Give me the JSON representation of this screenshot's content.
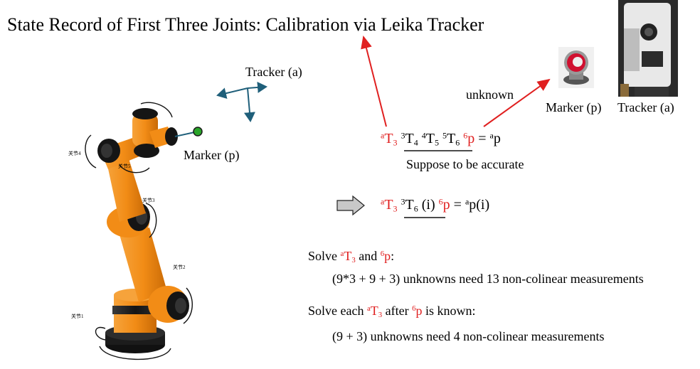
{
  "title": "State Record of First Three Joints: Calibration via Leika Tracker",
  "diagram": {
    "tracker_frame_label": "Tracker (a)",
    "marker_label": "Marker (p)",
    "unknown_label": "unknown",
    "photo_marker_caption": "Marker (p)",
    "photo_tracker_caption": "Tracker (a)",
    "joint_labels": [
      "关节1",
      "关节2",
      "关节3",
      "关节4",
      "关节5"
    ]
  },
  "equation1": {
    "aT3_sup": "a",
    "aT3_base": "T",
    "aT3_sub": "3",
    "t34_sup": "3",
    "t34_base": "T",
    "t34_sub": "4",
    "t45_sup": "4",
    "t45_base": "T",
    "t45_sub": "5",
    "t56_sup": "5",
    "t56_base": "T",
    "t56_sub": "6",
    "p_sup": "6",
    "p_base": "p",
    "rhs": "= ",
    "rhs_sup": "a",
    "rhs_base": "p",
    "note": "Suppose to be accurate"
  },
  "equation2": {
    "aT3_sup": "a",
    "aT3_base": "T",
    "aT3_sub": "3",
    "t36_sup": "3",
    "t36_base": "T",
    "t36_sub": "6",
    "t36_arg": " (i) ",
    "p_sup": "6",
    "p_base": "p",
    "rhs": " = ",
    "rhs_sup": "a",
    "rhs_base": "p(i)"
  },
  "solve1": {
    "prefix": "Solve ",
    "t_sup": "a",
    "t_base": "T",
    "t_sub": "3",
    "mid": " and ",
    "p_sup": "6",
    "p_base": "p",
    "suffix": ":",
    "detail": "(9*3 + 9 + 3) unknowns need 13 non-colinear measurements"
  },
  "solve2": {
    "prefix": "Solve each ",
    "t_sup": "a",
    "t_base": "T",
    "t_sub": "3",
    "mid": " after ",
    "p_sup": "6",
    "p_base": "p",
    "suffix": " is known:",
    "detail": "(9 + 3) unknowns need 4 non-colinear measurements"
  },
  "colors": {
    "robot_orange": "#f28c16",
    "joint_black": "#1a1a1a",
    "accent_red": "#e02020",
    "frame_teal": "#1f5f7a",
    "marker_green": "#2aa52a"
  }
}
